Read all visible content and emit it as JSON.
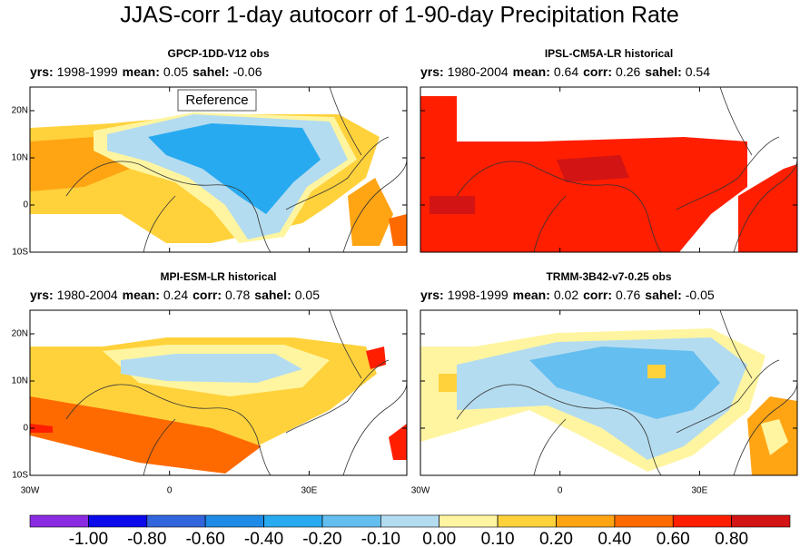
{
  "chart_data": {
    "type": "map",
    "title": "JJAS-corr 1-day autocorr of 1-90-day Precipitation Rate",
    "xlim": [
      -30,
      51
    ],
    "ylim": [
      -10,
      25
    ],
    "xticks": [
      {
        "value": -30,
        "label": "30W"
      },
      0,
      {
        "value": 30,
        "label": "30E"
      }
    ],
    "yticks": [
      {
        "value": -10,
        "label": "10S"
      },
      0,
      {
        "value": 10,
        "label": "10N"
      },
      {
        "value": 20,
        "label": "20N"
      }
    ],
    "panels": [
      {
        "title": "GPCP-1DD-V12 obs",
        "annotation": "Reference",
        "stats": [
          {
            "label": "yrs:",
            "value": "1998-1999"
          },
          {
            "label": "mean:",
            "value": 0.05
          },
          {
            "label": "sahel:",
            "value": -0.06
          }
        ]
      },
      {
        "title": "IPSL-CM5A-LR historical",
        "stats": [
          {
            "label": "yrs:",
            "value": "1980-2004"
          },
          {
            "label": "mean:",
            "value": 0.64
          },
          {
            "label": "corr:",
            "value": 0.26
          },
          {
            "label": "sahel:",
            "value": 0.54
          }
        ]
      },
      {
        "title": "MPI-ESM-LR historical",
        "stats": [
          {
            "label": "yrs:",
            "value": "1980-2004"
          },
          {
            "label": "mean:",
            "value": 0.24
          },
          {
            "label": "corr:",
            "value": 0.78
          },
          {
            "label": "sahel:",
            "value": 0.05
          }
        ]
      },
      {
        "title": "TRMM-3B42-v7-0.25 obs",
        "stats": [
          {
            "label": "yrs:",
            "value": "1998-1999"
          },
          {
            "label": "mean:",
            "value": 0.02
          },
          {
            "label": "corr:",
            "value": 0.76
          },
          {
            "label": "sahel:",
            "value": -0.05
          }
        ]
      }
    ],
    "colorbar": {
      "levels": [
        {
          "value": -1,
          "label": "-1.00"
        },
        {
          "value": -0.8,
          "label": "-0.80"
        },
        {
          "value": -0.6,
          "label": "-0.60"
        },
        {
          "value": -0.4,
          "label": "-0.40"
        },
        {
          "value": -0.2,
          "label": "-0.20"
        },
        {
          "value": -0.1,
          "label": "-0.10"
        },
        {
          "value": 0,
          "label": "0.00"
        },
        {
          "value": 0.1,
          "label": "0.10"
        },
        {
          "value": 0.2,
          "label": "0.20"
        },
        {
          "value": 0.4,
          "label": "0.40"
        },
        {
          "value": 0.6,
          "label": "0.60"
        },
        {
          "value": 0.8,
          "label": "0.80"
        }
      ],
      "colors": [
        "#8a2be2",
        "#0a0aeb",
        "#3264dc",
        "#1e8ce6",
        "#28aaf0",
        "#64bef0",
        "#b4dcf0",
        "#fff5a0",
        "#ffd23c",
        "#ffa514",
        "#ff6a00",
        "#ff1e00",
        "#d21414"
      ]
    }
  }
}
